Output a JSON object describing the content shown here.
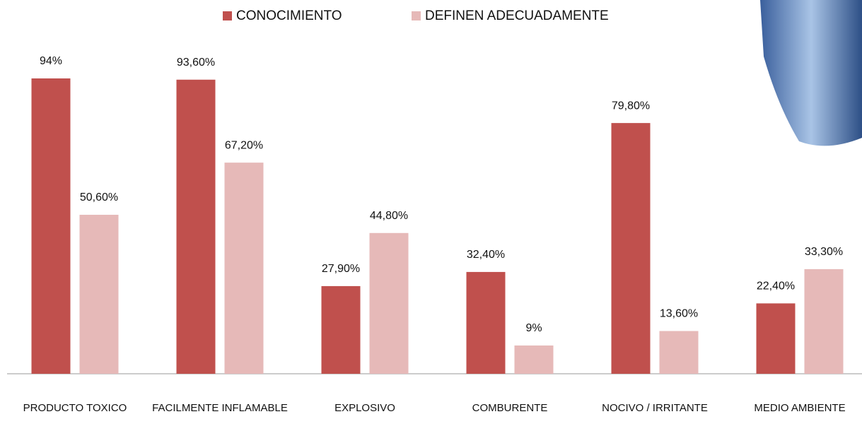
{
  "chart_data": {
    "type": "bar",
    "categories": [
      "PRODUCTO TOXICO",
      "FACILMENTE INFLAMABLE",
      "EXPLOSIVO",
      "COMBURENTE",
      "NOCIVO / IRRITANTE",
      "MEDIO AMBIENTE"
    ],
    "series": [
      {
        "name": "CONOCIMIENTO",
        "color": "#c0504d",
        "values": [
          94,
          93.6,
          27.9,
          32.4,
          79.8,
          22.4
        ],
        "value_labels": [
          "94%",
          "93,60%",
          "27,90%",
          "32,40%",
          "79,80%",
          "22,40%"
        ]
      },
      {
        "name": "DEFINEN ADECUADAMENTE",
        "color": "#e6b9b8",
        "values": [
          50.6,
          67.2,
          44.8,
          9,
          13.6,
          33.3
        ],
        "value_labels": [
          "50,60%",
          "67,20%",
          "44,80%",
          "9%",
          "13,60%",
          "33,30%"
        ]
      }
    ]
  }
}
